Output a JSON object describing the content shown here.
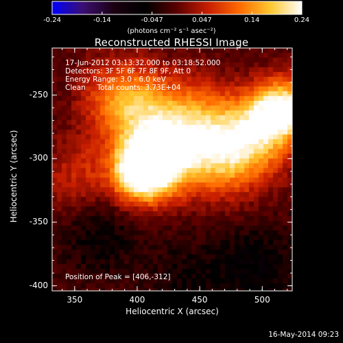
{
  "colorbar": {
    "ticks": [
      "-0.24",
      "-0.14",
      "-0.047",
      "0.047",
      "0.14",
      "0.24"
    ],
    "unit_label": "(photons cm⁻² s⁻¹ asec⁻²)",
    "colors": [
      "#0000ff",
      "#3b0f70",
      "#1a0010",
      "#000000",
      "#5a0000",
      "#c81e00",
      "#ff6a00",
      "#ffc830",
      "#ffffff"
    ]
  },
  "chart_data": {
    "type": "heatmap",
    "title": "Reconstructed RHESSI Image",
    "xlabel": "Heliocentric X (arcsec)",
    "ylabel": "Heliocentric Y (arcsec)",
    "xlim": [
      332,
      524
    ],
    "ylim": [
      -404,
      -213
    ],
    "x_ticks": [
      "350",
      "400",
      "450",
      "500"
    ],
    "x_tick_values": [
      350,
      400,
      450,
      500
    ],
    "y_ticks": [
      "-250",
      "-300",
      "-350",
      "-400"
    ],
    "y_tick_values": [
      -250,
      -300,
      -350,
      -400
    ],
    "zlim": [
      -0.24,
      0.24
    ],
    "peak": [
      406,
      -312
    ],
    "sources": [
      {
        "x": 406,
        "y": -312,
        "amp": 0.24
      },
      {
        "x": 423,
        "y": -297,
        "amp": 0.15
      },
      {
        "x": 468,
        "y": -300,
        "amp": 0.14
      },
      {
        "x": 495,
        "y": -285,
        "amp": 0.13
      },
      {
        "x": 515,
        "y": -262,
        "amp": 0.2
      },
      {
        "x": 385,
        "y": -250,
        "amp": 0.11
      },
      {
        "x": 405,
        "y": -265,
        "amp": 0.1
      },
      {
        "x": 355,
        "y": -310,
        "amp": 0.05
      },
      {
        "x": 445,
        "y": -262,
        "amp": 0.09
      },
      {
        "x": 370,
        "y": -360,
        "amp": -0.05
      },
      {
        "x": 495,
        "y": -385,
        "amp": -0.06
      },
      {
        "x": 440,
        "y": -395,
        "amp": -0.04
      }
    ],
    "info_lines": [
      "17-Jun-2012 03:13:32.000 to 03:18:52.000",
      "Detectors: 3F 5F 6F 7F 8F 9F, Att 0",
      "Energy Range: 3.0 - 6.0 keV",
      "Clean     Total counts: 3.73E+04"
    ],
    "peak_label": "Position of Peak = [406,-312]"
  },
  "timestamp": "16-May-2014 09:23"
}
